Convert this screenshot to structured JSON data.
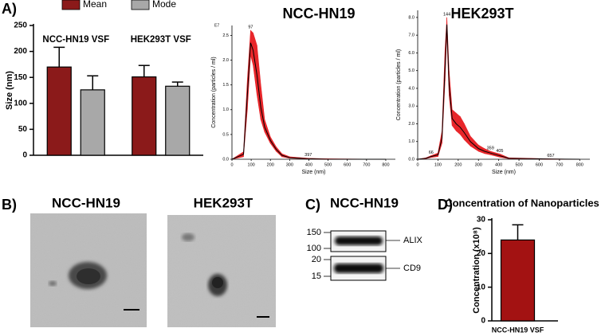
{
  "panels": {
    "a": "A)",
    "b": "B)",
    "c": "C)",
    "d": "D)"
  },
  "tem": {
    "images": [
      {
        "label": "NCC-HN19"
      },
      {
        "label": "HEK293T"
      }
    ]
  },
  "western_blot": {
    "title": "NCC-HN19",
    "markers": [
      "150",
      "100",
      "20",
      "15"
    ],
    "bands": [
      "ALIX",
      "CD9"
    ]
  },
  "chart_data": [
    {
      "type": "bar",
      "ylabel": "Size (nm)",
      "categories": [
        "NCC-HN19 VSF",
        "HEK293T VSF"
      ],
      "series": [
        {
          "name": "Mean",
          "color": "#8b1a1a",
          "values": [
            170,
            151
          ],
          "errors": [
            38,
            22
          ]
        },
        {
          "name": "Mode",
          "color": "#a8a8a8",
          "values": [
            126,
            133
          ],
          "errors": [
            27,
            8
          ]
        }
      ],
      "ylim": [
        0,
        250
      ],
      "yticks": [
        0,
        50,
        100,
        150,
        200,
        250
      ]
    },
    {
      "type": "line",
      "title": "NCC-HN19",
      "xlabel": "Size (nm)",
      "ylabel": "Concentration (particles / ml)",
      "y_multiplier": "E7",
      "x": [
        0,
        60,
        80,
        97,
        110,
        130,
        150,
        170,
        200,
        230,
        260,
        300,
        397,
        500,
        800
      ],
      "series": [
        {
          "color": "#000000",
          "band_color": "#e8262a",
          "values": [
            0,
            0.1,
            1.3,
            2.35,
            2.2,
            1.7,
            1.05,
            0.65,
            0.38,
            0.2,
            0.08,
            0.03,
            0.01,
            0,
            0
          ],
          "upper": [
            0,
            0.15,
            1.6,
            2.6,
            2.55,
            2.3,
            1.5,
            0.8,
            0.45,
            0.25,
            0.11,
            0.05,
            0.02,
            0.01,
            0
          ],
          "lower": [
            0,
            0.05,
            1.0,
            2.1,
            1.9,
            1.3,
            0.8,
            0.55,
            0.32,
            0.16,
            0.05,
            0.02,
            0.005,
            0,
            0
          ]
        }
      ],
      "peak_labels": [
        97,
        397
      ],
      "xlim": [
        0,
        850
      ],
      "xticks": [
        0,
        100,
        200,
        300,
        400,
        500,
        600,
        700,
        800
      ],
      "ylim": [
        0,
        2.7
      ],
      "yticks": [
        {
          "value": 0,
          "label": "0.0"
        },
        0.5,
        {
          "value": 1,
          "label": "1.0"
        },
        1.5,
        {
          "value": 2,
          "label": "2.0"
        },
        2.5
      ]
    },
    {
      "type": "line",
      "title": "HEK293T",
      "xlabel": "Size (nm)",
      "ylabel": "Concentration (particles / ml)",
      "x": [
        0,
        40,
        66,
        100,
        120,
        135,
        144,
        155,
        170,
        190,
        210,
        230,
        260,
        300,
        330,
        359,
        405,
        450,
        657,
        800
      ],
      "series": [
        {
          "color": "#000000",
          "band_color": "#e8262a",
          "values": [
            0,
            0.05,
            0.15,
            0.25,
            1.2,
            5.2,
            7.6,
            4.2,
            2.3,
            2.0,
            1.8,
            1.5,
            1.0,
            0.6,
            0.45,
            0.35,
            0.2,
            0.05,
            0.01,
            0
          ],
          "upper": [
            0,
            0.08,
            0.2,
            0.35,
            1.6,
            6.2,
            8.0,
            5.0,
            2.8,
            2.6,
            2.4,
            2.0,
            1.3,
            0.8,
            0.6,
            0.45,
            0.3,
            0.08,
            0.02,
            0
          ],
          "lower": [
            0,
            0.03,
            0.1,
            0.15,
            0.9,
            4.4,
            7.1,
            3.6,
            1.9,
            1.6,
            1.4,
            1.1,
            0.75,
            0.45,
            0.32,
            0.25,
            0.12,
            0.03,
            0.005,
            0
          ]
        }
      ],
      "peak_labels": [
        66,
        144,
        359,
        405,
        657
      ],
      "xlim": [
        0,
        850
      ],
      "xticks": [
        0,
        100,
        200,
        300,
        400,
        500,
        600,
        700,
        800
      ],
      "ylim": [
        0,
        8.4
      ],
      "yticks": [
        {
          "value": 0,
          "label": "0.0"
        },
        {
          "value": 1,
          "label": "1.0"
        },
        {
          "value": 2,
          "label": "2.0"
        },
        {
          "value": 3,
          "label": "3.0"
        },
        {
          "value": 4,
          "label": "4.0"
        },
        {
          "value": 5,
          "label": "5.0"
        },
        {
          "value": 6,
          "label": "6.0"
        },
        {
          "value": 7,
          "label": "7.0"
        },
        {
          "value": 8,
          "label": "8.0"
        }
      ]
    },
    {
      "type": "bar",
      "title": "Concentration of Nanoparticles",
      "ylabel": "Concentration (x10⁸)",
      "categories": [
        "NCC-HN19 VSF"
      ],
      "values": [
        24
      ],
      "errors": [
        4.5
      ],
      "color": "#a31212",
      "ylim": [
        0,
        30
      ],
      "yticks": [
        0,
        10,
        20,
        30
      ]
    }
  ]
}
